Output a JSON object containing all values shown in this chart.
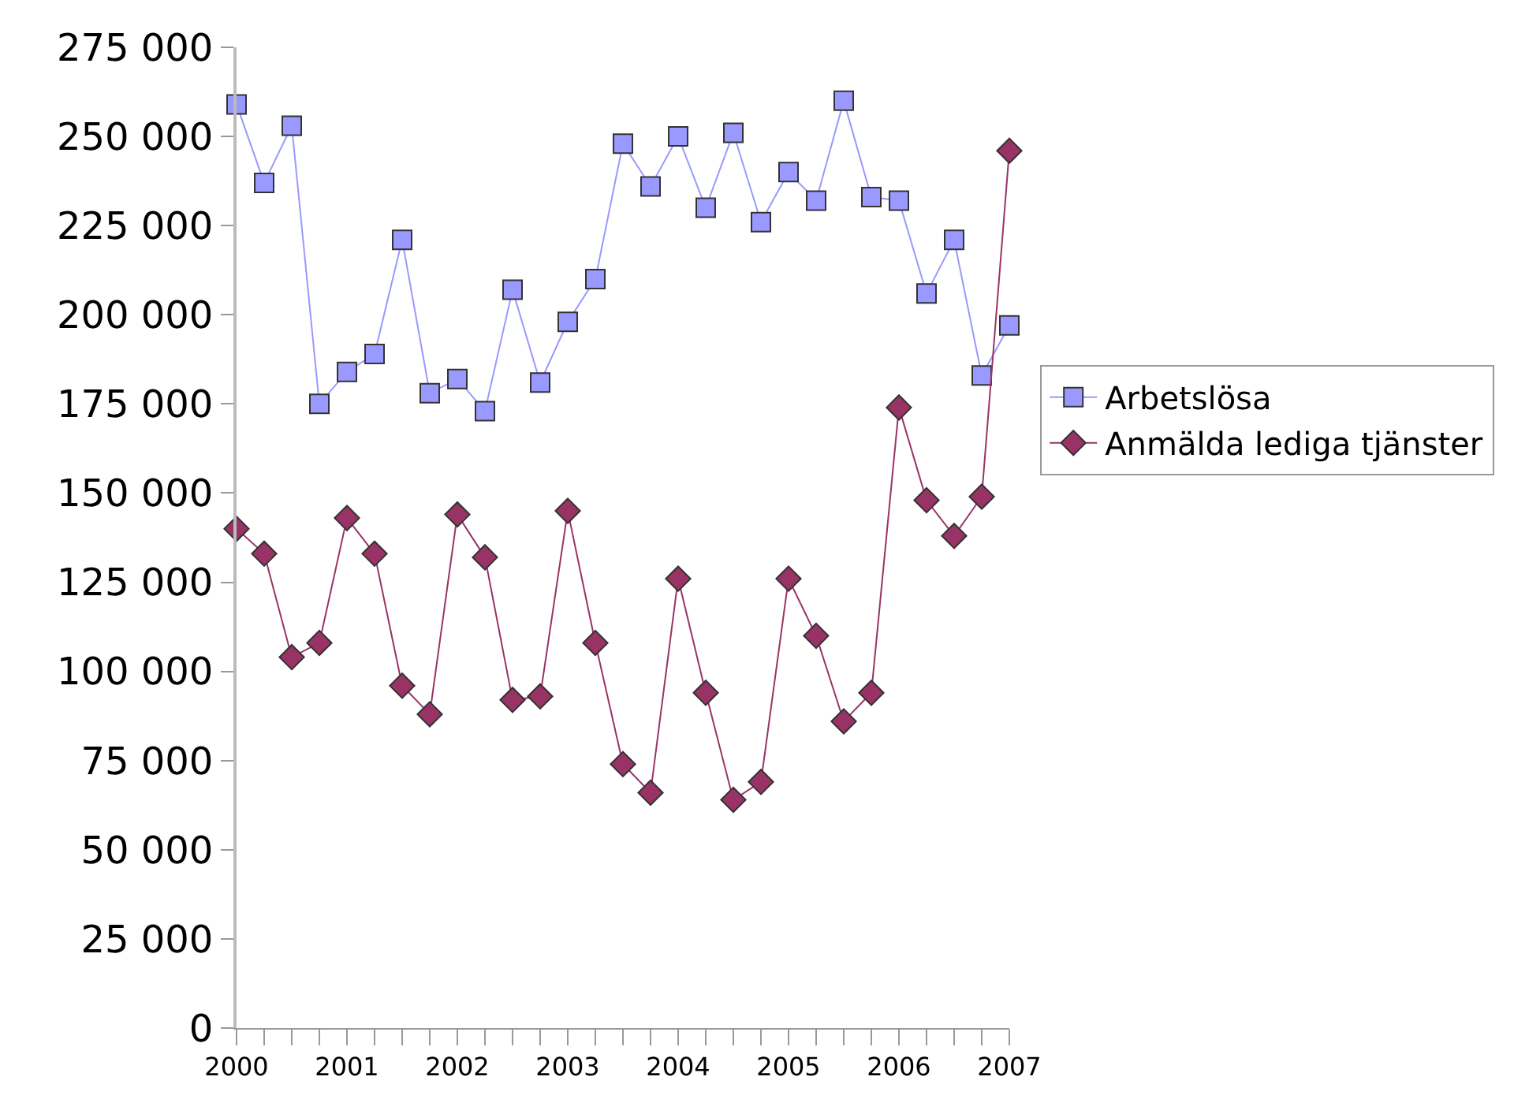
{
  "chart_data": {
    "type": "line",
    "x": [
      2000,
      2000.25,
      2000.5,
      2000.75,
      2001,
      2001.25,
      2001.5,
      2001.75,
      2002,
      2002.25,
      2002.5,
      2002.75,
      2003,
      2003.25,
      2003.5,
      2003.75,
      2004,
      2004.25,
      2004.5,
      2004.75,
      2005,
      2005.25,
      2005.5,
      2005.75,
      2006,
      2006.25,
      2006.5,
      2006.75,
      2007
    ],
    "series": [
      {
        "name": "Arbetslösa",
        "color": "#9999ff",
        "marker": "square",
        "values": [
          259000,
          237000,
          253000,
          175000,
          184000,
          189000,
          221000,
          178000,
          182000,
          173000,
          207000,
          181000,
          198000,
          210000,
          248000,
          236000,
          250000,
          230000,
          251000,
          226000,
          240000,
          232000,
          260000,
          233000,
          232000,
          206000,
          221000,
          183000,
          197000
        ]
      },
      {
        "name": "Anmälda lediga tjänster",
        "color": "#993366",
        "marker": "diamond",
        "values": [
          140000,
          133000,
          104000,
          108000,
          143000,
          133000,
          96000,
          88000,
          144000,
          132000,
          92000,
          93000,
          145000,
          108000,
          74000,
          66000,
          126000,
          94000,
          64000,
          69000,
          126000,
          110000,
          86000,
          94000,
          174000,
          148000,
          138000,
          149000,
          246000
        ]
      }
    ],
    "xlim": [
      2000,
      2007
    ],
    "xticks": [
      2000,
      2001,
      2002,
      2003,
      2004,
      2005,
      2006,
      2007
    ],
    "ylim": [
      0,
      275000
    ],
    "yticks": [
      0,
      {
        "value": 25000,
        "label": "25 000"
      },
      {
        "value": 50000,
        "label": "50 000"
      },
      {
        "value": 75000,
        "label": "75 000"
      },
      {
        "value": 100000,
        "label": "100 000"
      },
      {
        "value": 125000,
        "label": "125 000"
      },
      {
        "value": 150000,
        "label": "150 000"
      },
      {
        "value": 175000,
        "label": "175 000"
      },
      {
        "value": 200000,
        "label": "200 000"
      },
      {
        "value": 225000,
        "label": "225 000"
      },
      {
        "value": 250000,
        "label": "250 000"
      },
      {
        "value": 275000,
        "label": "275 000"
      }
    ],
    "grid": false,
    "legend": "right"
  }
}
